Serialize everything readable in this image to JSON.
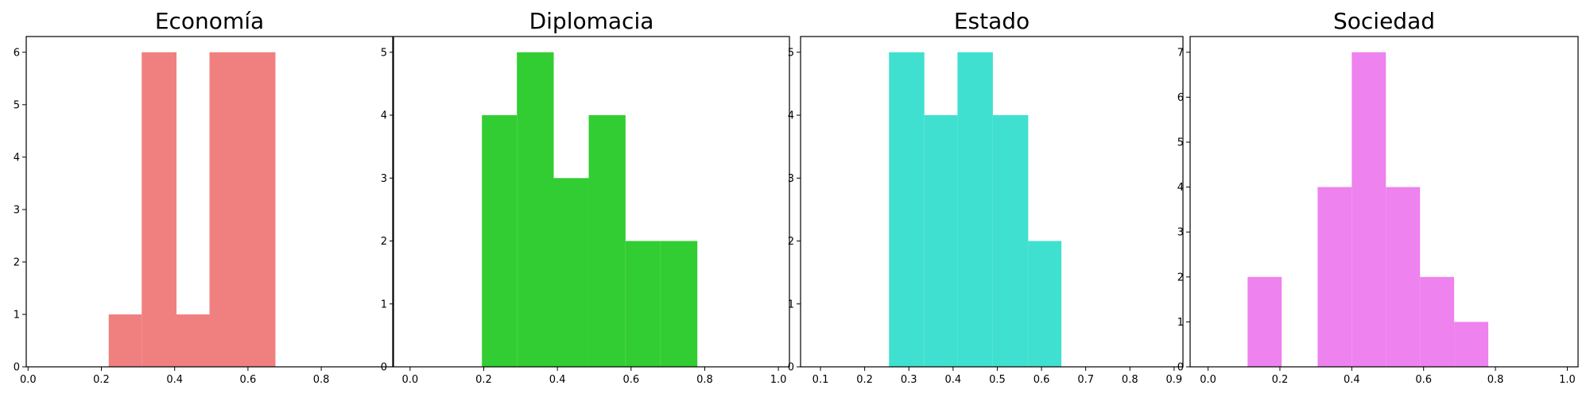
{
  "chart_data": [
    {
      "type": "bar",
      "title": "Economía",
      "color": "#f08080",
      "xlim": [
        -0.005,
        0.995
      ],
      "ylim": [
        0,
        6.3
      ],
      "xticks": [
        0.0,
        0.2,
        0.4,
        0.6,
        0.8
      ],
      "xtick_labels": [
        "0.0",
        "0.2",
        "0.4",
        "0.6",
        "0.8"
      ],
      "yticks": [
        0,
        1,
        2,
        3,
        4,
        5,
        6
      ],
      "ytick_labels": [
        "0",
        "1",
        "2",
        "3",
        "4",
        "5",
        "6"
      ],
      "bins": [
        [
          0.22,
          0.31,
          1
        ],
        [
          0.31,
          0.405,
          6
        ],
        [
          0.405,
          0.495,
          1
        ],
        [
          0.495,
          0.585,
          6
        ],
        [
          0.585,
          0.675,
          6
        ]
      ]
    },
    {
      "type": "bar",
      "title": "Diplomacia",
      "color": "#32cd32",
      "xlim": [
        -0.045,
        1.03
      ],
      "ylim": [
        0,
        5.25
      ],
      "xticks": [
        0.0,
        0.2,
        0.4,
        0.6,
        0.8,
        1.0
      ],
      "xtick_labels": [
        "0.0",
        "0.2",
        "0.4",
        "0.6",
        "0.8",
        "1.0"
      ],
      "yticks": [
        0,
        1,
        2,
        3,
        4,
        5
      ],
      "ytick_labels": [
        "0",
        "1",
        "2",
        "3",
        "4",
        "5"
      ],
      "bins": [
        [
          0.195,
          0.29,
          4
        ],
        [
          0.29,
          0.39,
          5
        ],
        [
          0.39,
          0.485,
          3
        ],
        [
          0.485,
          0.585,
          4
        ],
        [
          0.585,
          0.68,
          2
        ],
        [
          0.68,
          0.78,
          2
        ]
      ]
    },
    {
      "type": "bar",
      "title": "Estado",
      "color": "#40e0d0",
      "xlim": [
        0.055,
        0.92
      ],
      "ylim": [
        0,
        5.25
      ],
      "xticks": [
        0.1,
        0.2,
        0.3,
        0.4,
        0.5,
        0.6,
        0.7,
        0.8,
        0.9
      ],
      "xtick_labels": [
        "0.1",
        "0.2",
        "0.3",
        "0.4",
        "0.5",
        "0.6",
        "0.7",
        "0.8",
        "0.9"
      ],
      "yticks": [
        0,
        1,
        2,
        3,
        4,
        5
      ],
      "ytick_labels": [
        "0",
        "1",
        "2",
        "3",
        "4",
        "5"
      ],
      "bins": [
        [
          0.255,
          0.335,
          5
        ],
        [
          0.335,
          0.41,
          4
        ],
        [
          0.41,
          0.49,
          5
        ],
        [
          0.49,
          0.57,
          4
        ],
        [
          0.57,
          0.645,
          2
        ]
      ]
    },
    {
      "type": "bar",
      "title": "Sociedad",
      "color": "#ee82ee",
      "xlim": [
        -0.05,
        1.03
      ],
      "ylim": [
        0,
        7.35
      ],
      "xticks": [
        0.0,
        0.2,
        0.4,
        0.6,
        0.8,
        1.0
      ],
      "xtick_labels": [
        "0.0",
        "0.2",
        "0.4",
        "0.6",
        "0.8",
        "1.0"
      ],
      "yticks": [
        0,
        1,
        2,
        3,
        4,
        5,
        6,
        7
      ],
      "ytick_labels": [
        "0",
        "1",
        "2",
        "3",
        "4",
        "5",
        "6",
        "7"
      ],
      "bins": [
        [
          0.11,
          0.205,
          2
        ],
        [
          0.305,
          0.4,
          4
        ],
        [
          0.4,
          0.495,
          7
        ],
        [
          0.495,
          0.59,
          4
        ],
        [
          0.59,
          0.685,
          2
        ],
        [
          0.685,
          0.78,
          1
        ]
      ]
    }
  ]
}
